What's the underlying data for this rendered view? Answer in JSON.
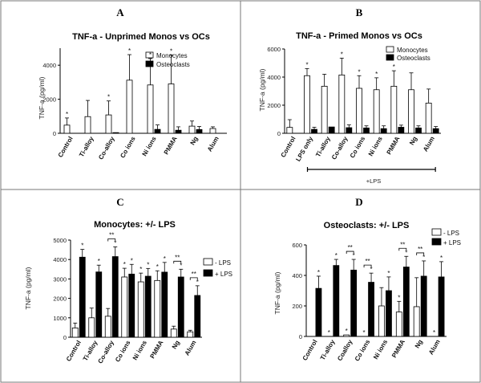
{
  "panels": [
    {
      "letter": "A",
      "chart": {
        "type": "bar",
        "title": "TNF-a - Unprimed Monos vs OCs",
        "ylabel": "TNF-a (pg/ml)",
        "ylim": [
          0,
          5000
        ],
        "yticks": [
          0,
          2000,
          4000
        ],
        "categories": [
          "Control",
          "Ti-alloy",
          "Co-alloy",
          "Co ions",
          "Ni ions",
          "PMMA",
          "Ng",
          "Alum"
        ],
        "series": [
          {
            "name": "Monocytes",
            "fill": "white",
            "values": [
              480,
              980,
              1080,
              3120,
              2840,
              2900,
              420,
              280
            ],
            "errors": [
              420,
              950,
              820,
              1500,
              1550,
              1700,
              300,
              100
            ],
            "stars": [
              "*",
              "",
              "*",
              "*",
              "*",
              "*",
              "",
              ""
            ]
          },
          {
            "name": "Osteoclasts",
            "fill": "black",
            "values": [
              0,
              0,
              40,
              0,
              230,
              180,
              220,
              0
            ],
            "errors": [
              0,
              0,
              0,
              0,
              260,
              200,
              180,
              0
            ],
            "stars": [
              "",
              "",
              "",
              "",
              "",
              "",
              "",
              ""
            ]
          }
        ],
        "legend": "top-right"
      }
    },
    {
      "letter": "B",
      "chart": {
        "type": "bar",
        "title": "TNF-a - Primed Monos vs OCs",
        "ylabel": "TNF-a (pg/ml)",
        "ylim": [
          0,
          6000
        ],
        "yticks": [
          0,
          2000,
          4000,
          6000
        ],
        "categories": [
          "Control",
          "LPS only",
          "Ti-alloy",
          "Co-alloy",
          "Co ions",
          "Ni ions",
          "PMMA",
          "Ng",
          "Alum"
        ],
        "series": [
          {
            "name": "Monocytes",
            "fill": "white",
            "values": [
              420,
              4100,
              3350,
              4150,
              3200,
              3100,
              3350,
              3100,
              2150
            ],
            "errors": [
              550,
              500,
              850,
              1200,
              900,
              850,
              1100,
              1200,
              1000
            ],
            "stars": [
              "",
              "*",
              "",
              "*",
              "*",
              "*",
              "*",
              "",
              ""
            ]
          },
          {
            "name": "Osteoclasts",
            "fill": "black",
            "values": [
              0,
              280,
              450,
              400,
              380,
              330,
              430,
              380,
              330
            ],
            "errors": [
              0,
              150,
              0,
              200,
              150,
              200,
              150,
              150,
              150
            ],
            "stars": [
              "",
              "",
              "",
              "",
              "",
              "",
              "",
              "",
              ""
            ]
          }
        ],
        "bracket_label": "+LPS",
        "legend": "top-right"
      }
    },
    {
      "letter": "C",
      "chart": {
        "type": "bar",
        "title": "Monocytes: +/- LPS",
        "ylabel": "TNF-a (pg/ml)",
        "ylim": [
          0,
          5000
        ],
        "yticks": [
          0,
          1000,
          2000,
          3000,
          4000,
          5000
        ],
        "categories": [
          "Control",
          "Ti-alloy",
          "Co-alloy",
          "Co ions",
          "Ni ions",
          "PMMA",
          "Ng",
          "Alum"
        ],
        "series": [
          {
            "name": "- LPS",
            "fill": "white",
            "values": [
              480,
              1000,
              1080,
              3100,
              2850,
              2920,
              420,
              280
            ],
            "errors": [
              250,
              500,
              400,
              450,
              450,
              500,
              150,
              80
            ],
            "stars": [
              "",
              "",
              "",
              "*",
              "*",
              "*",
              "",
              ""
            ]
          },
          {
            "name": "+ LPS",
            "fill": "black",
            "values": [
              4120,
              3360,
              4150,
              3250,
              3140,
              3350,
              3100,
              2150
            ],
            "errors": [
              400,
              350,
              500,
              500,
              400,
              500,
              400,
              500
            ],
            "stars": [
              "*",
              "*",
              "*",
              "*",
              "*",
              "*",
              "*",
              "*"
            ]
          }
        ],
        "brackets": [
          {
            "category": "Co-alloy",
            "label": "**"
          },
          {
            "category": "Ng",
            "label": "**"
          },
          {
            "category": "Alum",
            "label": "**"
          }
        ],
        "legend": "right"
      }
    },
    {
      "letter": "D",
      "chart": {
        "type": "bar",
        "title": "Osteoclasts: +/- LPS",
        "ylabel": "TNF-a (pg/ml)",
        "ylim": [
          0,
          600
        ],
        "yticks": [
          0,
          200,
          400,
          600
        ],
        "categories": [
          "Control",
          "Ti-alloy",
          "Coalloy",
          "Co ions",
          "Ni ions",
          "PMMA",
          "Ng",
          "Alum"
        ],
        "series": [
          {
            "name": "- LPS",
            "fill": "white",
            "values": [
              0,
              0,
              10,
              0,
              200,
              160,
              195,
              0
            ],
            "errors": [
              0,
              0,
              0,
              0,
              120,
              70,
              190,
              0
            ],
            "stars": [
              "",
              "*",
              "*",
              "*",
              "",
              "*",
              "",
              "*"
            ]
          },
          {
            "name": "+ LPS",
            "fill": "black",
            "values": [
              315,
              465,
              435,
              355,
              300,
              455,
              395,
              390
            ],
            "errors": [
              80,
              40,
              70,
              60,
              90,
              70,
              100,
              100
            ],
            "stars": [
              "*",
              "*",
              "*",
              "*",
              "*",
              "*",
              "*",
              "*"
            ]
          }
        ],
        "brackets": [
          {
            "category": "Coalloy",
            "label": "**"
          },
          {
            "category": "Co ions",
            "label": "**"
          },
          {
            "category": "PMMA",
            "label": "**"
          },
          {
            "category": "Ng",
            "label": "**"
          }
        ],
        "legend": "right"
      }
    }
  ]
}
